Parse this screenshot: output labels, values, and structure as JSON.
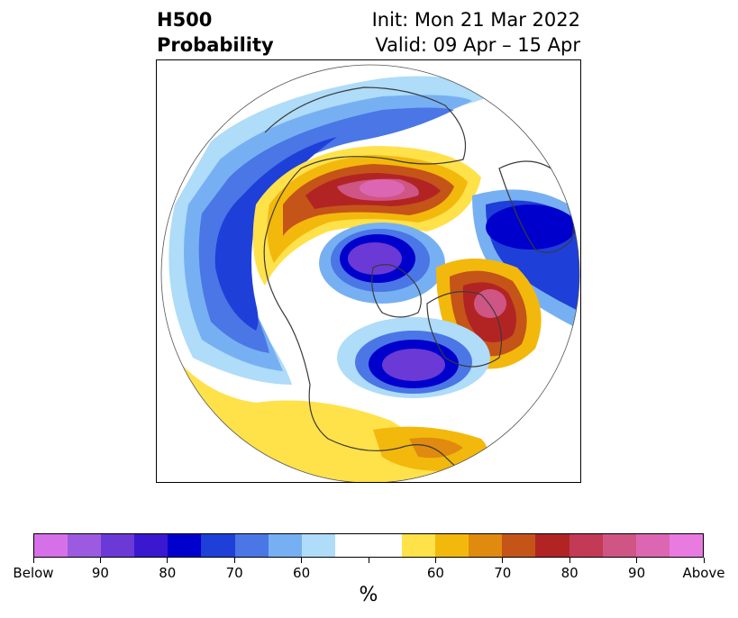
{
  "title": {
    "left_line1": "H500",
    "left_line2": "Probability",
    "right_line1": "Init: Mon 21 Mar 2022",
    "right_line2": "Valid: 09 Apr – 15 Apr"
  },
  "colorbar": {
    "colors": [
      "#d670e8",
      "#9c5ae0",
      "#6a39d6",
      "#3a18d0",
      "#0000cc",
      "#1f3fd9",
      "#4a76e6",
      "#77b0f2",
      "#aedcf9",
      "#ffffff",
      "#ffffff",
      "#ffe14a",
      "#f3b80c",
      "#e08a10",
      "#c55418",
      "#b22424",
      "#c23a55",
      "#cf5585",
      "#dd66b2",
      "#e87ae0"
    ],
    "tick_labels": [
      "Below",
      "90",
      "80",
      "70",
      "60",
      "",
      "60",
      "70",
      "80",
      "90",
      "Above"
    ],
    "unit": "%"
  },
  "map": {
    "projection": "north-polar-stereographic",
    "anomalies": [
      {
        "type": "below",
        "region": "Arctic / Baffin Bay",
        "peak_pct": 90
      },
      {
        "type": "below",
        "region": "Eastern Canada / Great Lakes",
        "peak_pct": 90
      },
      {
        "type": "below",
        "region": "Western Europe",
        "peak_pct": 80
      },
      {
        "type": "below",
        "region": "North Pacific",
        "peak_pct": 70
      },
      {
        "type": "above",
        "region": "Siberia",
        "peak_pct": 90
      },
      {
        "type": "above",
        "region": "Greenland / North Atlantic",
        "peak_pct": 90
      },
      {
        "type": "above",
        "region": "Southeast US / Gulf",
        "peak_pct": 70
      }
    ]
  }
}
